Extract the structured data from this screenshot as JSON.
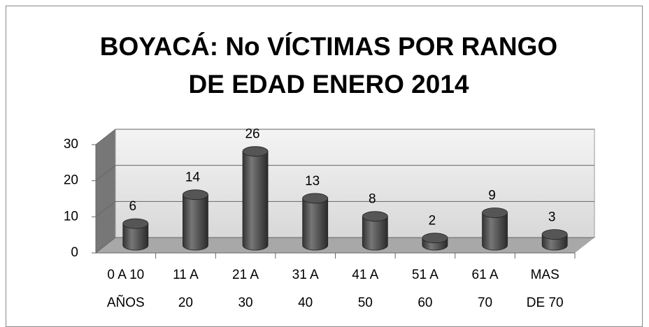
{
  "chart_data": {
    "type": "bar",
    "title": "BOYACÁ: No VÍCTIMAS POR RANGO\nDE EDAD ENERO 2014",
    "categories": [
      "0  A 10\nAÑOS",
      "11 A\n20",
      "21 A\n30",
      "31 A\n40",
      "41 A\n50",
      "51 A\n60",
      "61 A\n70",
      "MAS\nDE 70"
    ],
    "values": [
      6,
      14,
      26,
      13,
      8,
      2,
      9,
      3
    ],
    "color": "#555555",
    "ylim": [
      0,
      30
    ],
    "yticks": [
      0,
      10,
      20,
      30
    ],
    "grid": true
  }
}
